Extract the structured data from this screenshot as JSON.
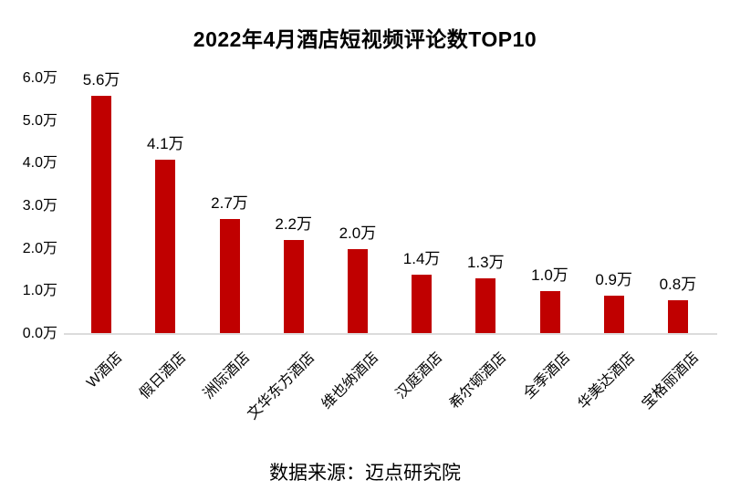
{
  "title": "2022年4月酒店短视频评论数TOP10",
  "source_note": "数据来源：迈点研究院",
  "chart_data": {
    "type": "bar",
    "title": "2022年4月酒店短视频评论数TOP10",
    "categories": [
      "W酒店",
      "假日酒店",
      "洲际酒店",
      "文华东方酒店",
      "维也纳酒店",
      "汉庭酒店",
      "希尔顿酒店",
      "全季酒店",
      "华美达酒店",
      "宝格丽酒店"
    ],
    "values": [
      5.6,
      4.1,
      2.7,
      2.2,
      2.0,
      1.4,
      1.3,
      1.0,
      0.9,
      0.8
    ],
    "value_labels": [
      "5.6万",
      "4.1万",
      "2.7万",
      "2.2万",
      "2.0万",
      "1.4万",
      "1.3万",
      "1.0万",
      "0.9万",
      "0.8万"
    ],
    "unit": "万",
    "xlabel": "",
    "ylabel": "",
    "ylim": [
      0,
      6
    ],
    "ytick_step": 1.0,
    "ytick_labels": [
      "0.0万",
      "1.0万",
      "2.0万",
      "3.0万",
      "4.0万",
      "5.0万",
      "6.0万"
    ],
    "grid": false,
    "legend": "none",
    "bar_color": "#C00000",
    "axis_line_color": "#DCDCDC",
    "text_color": "#000000",
    "background_color": "#FFFFFF",
    "annotation_source": "数据来源：迈点研究院"
  }
}
